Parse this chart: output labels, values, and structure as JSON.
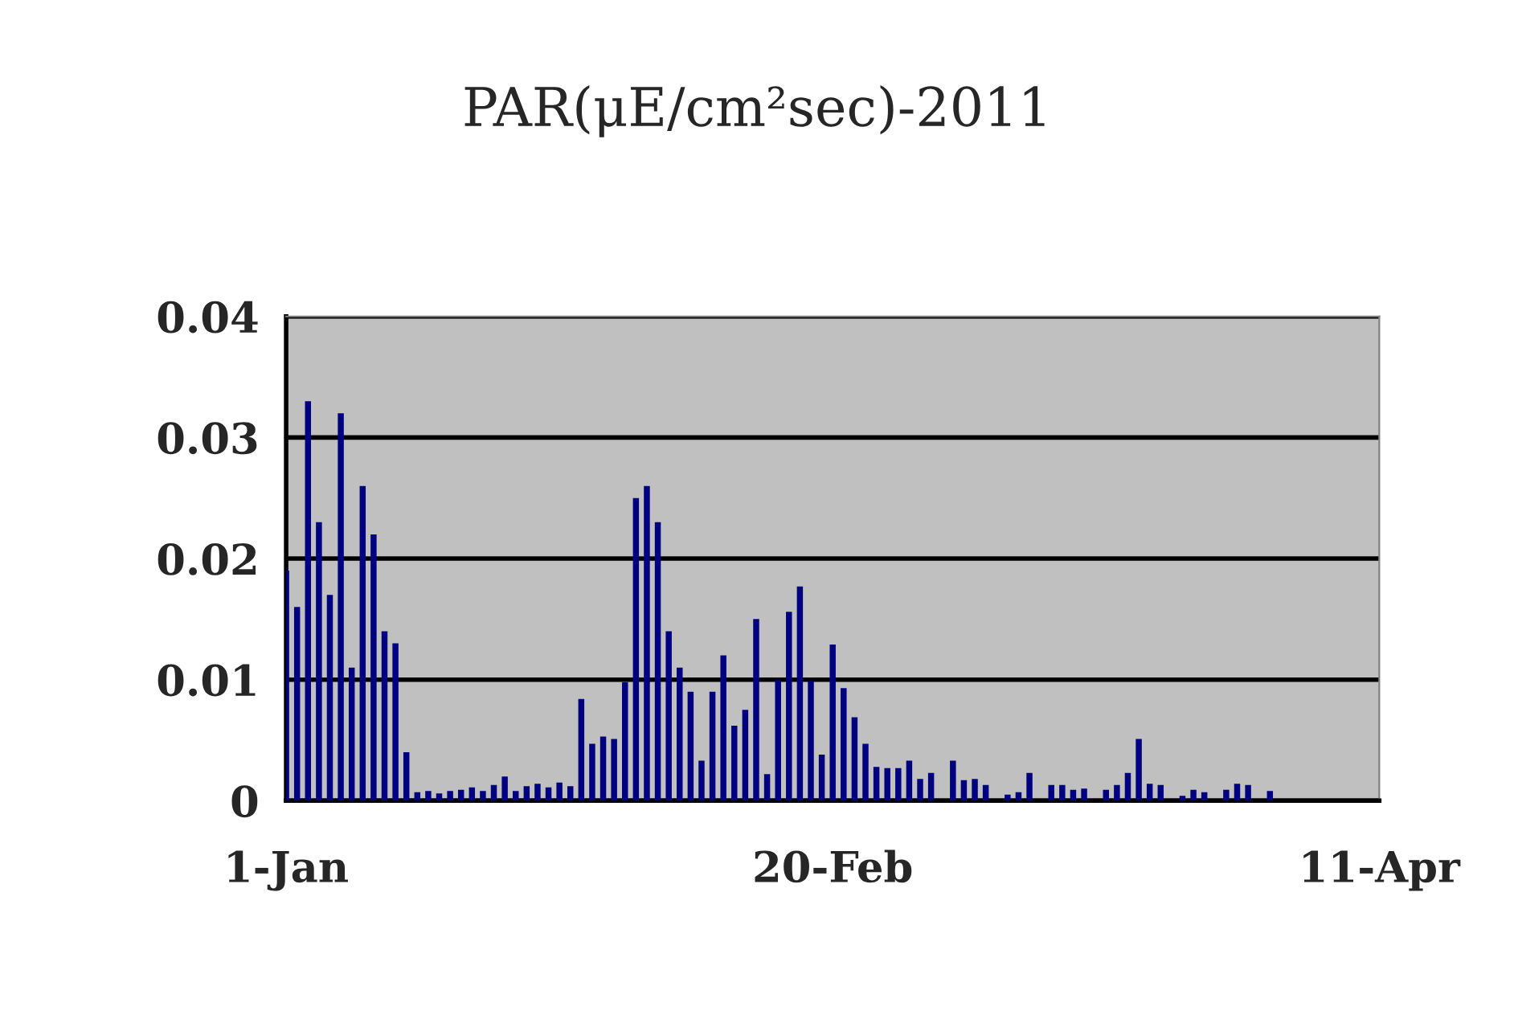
{
  "chart_data": {
    "type": "bar",
    "title": "PAR(μE/cm²sec)-2011",
    "color": "#000080",
    "x": [
      "2011-01-01",
      "2011-01-02",
      "2011-01-03",
      "2011-01-04",
      "2011-01-05",
      "2011-01-06",
      "2011-01-07",
      "2011-01-08",
      "2011-01-09",
      "2011-01-10",
      "2011-01-11",
      "2011-01-12",
      "2011-01-13",
      "2011-01-14",
      "2011-01-15",
      "2011-01-16",
      "2011-01-17",
      "2011-01-18",
      "2011-01-19",
      "2011-01-20",
      "2011-01-21",
      "2011-01-22",
      "2011-01-23",
      "2011-01-24",
      "2011-01-25",
      "2011-01-26",
      "2011-01-27",
      "2011-01-28",
      "2011-01-29",
      "2011-01-30",
      "2011-01-31",
      "2011-02-01",
      "2011-02-02",
      "2011-02-03",
      "2011-02-04",
      "2011-02-05",
      "2011-02-06",
      "2011-02-07",
      "2011-02-08",
      "2011-02-09",
      "2011-02-10",
      "2011-02-11",
      "2011-02-12",
      "2011-02-13",
      "2011-02-14",
      "2011-02-15",
      "2011-02-16",
      "2011-02-17",
      "2011-02-18",
      "2011-02-19",
      "2011-02-20",
      "2011-02-21",
      "2011-02-22",
      "2011-02-23",
      "2011-02-24",
      "2011-02-25",
      "2011-02-26",
      "2011-02-27",
      "2011-02-28",
      "2011-03-01",
      "2011-03-03",
      "2011-03-04",
      "2011-03-05",
      "2011-03-06",
      "2011-03-08",
      "2011-03-09",
      "2011-03-10",
      "2011-03-12",
      "2011-03-13",
      "2011-03-14",
      "2011-03-15",
      "2011-03-17",
      "2011-03-18",
      "2011-03-19",
      "2011-03-20",
      "2011-03-21",
      "2011-03-22",
      "2011-03-24",
      "2011-03-25",
      "2011-03-26",
      "2011-03-28",
      "2011-03-29",
      "2011-03-30",
      "2011-04-01"
    ],
    "values": [
      0.019,
      0.016,
      0.033,
      0.023,
      0.017,
      0.032,
      0.011,
      0.026,
      0.022,
      0.014,
      0.013,
      0.004,
      0.0007,
      0.0008,
      0.0006,
      0.0008,
      0.0009,
      0.0011,
      0.0008,
      0.0013,
      0.002,
      0.0008,
      0.0012,
      0.0014,
      0.0011,
      0.0015,
      0.0012,
      0.0084,
      0.0047,
      0.0053,
      0.0051,
      0.0098,
      0.025,
      0.026,
      0.023,
      0.014,
      0.011,
      0.009,
      0.0033,
      0.009,
      0.012,
      0.0062,
      0.0075,
      0.015,
      0.0022,
      0.01,
      0.0156,
      0.0177,
      0.0099,
      0.0038,
      0.0129,
      0.0093,
      0.0069,
      0.0047,
      0.0028,
      0.0027,
      0.0027,
      0.0033,
      0.0018,
      0.0023,
      0.0033,
      0.0017,
      0.0018,
      0.0013,
      0.0005,
      0.0007,
      0.0023,
      0.0013,
      0.0013,
      0.0009,
      0.001,
      0.0009,
      0.0013,
      0.0023,
      0.0051,
      0.0014,
      0.0013,
      0.0004,
      0.0009,
      0.0007,
      0.0009,
      0.0014,
      0.0013,
      0.0008
    ],
    "xlim": [
      "2011-01-01",
      "2011-04-11"
    ],
    "xticks": [
      {
        "value": "2011-01-01",
        "label": "1-Jan"
      },
      {
        "value": "2011-02-20",
        "label": "20-Feb"
      },
      {
        "value": "2011-04-11",
        "label": "11-Apr"
      }
    ],
    "ylim": [
      0,
      0.04
    ],
    "yticks": [
      0,
      0.01,
      0.02,
      0.03,
      0.04
    ],
    "grid": "y",
    "legend": false
  }
}
